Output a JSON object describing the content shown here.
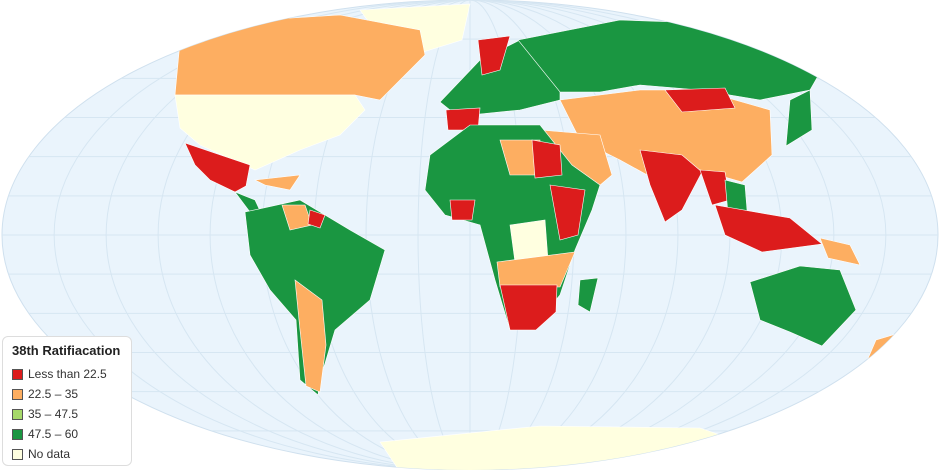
{
  "legend": {
    "title": "38th Ratifiacation",
    "items": [
      {
        "label": "Less than 22.5",
        "color": "#dc1c1c"
      },
      {
        "label": "22.5 – 35",
        "color": "#fdae61"
      },
      {
        "label": "35 – 47.5",
        "color": "#a6d96a"
      },
      {
        "label": "47.5 – 60",
        "color": "#1a9641"
      },
      {
        "label": "No data",
        "color": "#ffffe0"
      }
    ]
  },
  "colors": {
    "ocean": "#eaf4fc",
    "grid": "#d6e6f2",
    "border": "#ffffff"
  }
}
